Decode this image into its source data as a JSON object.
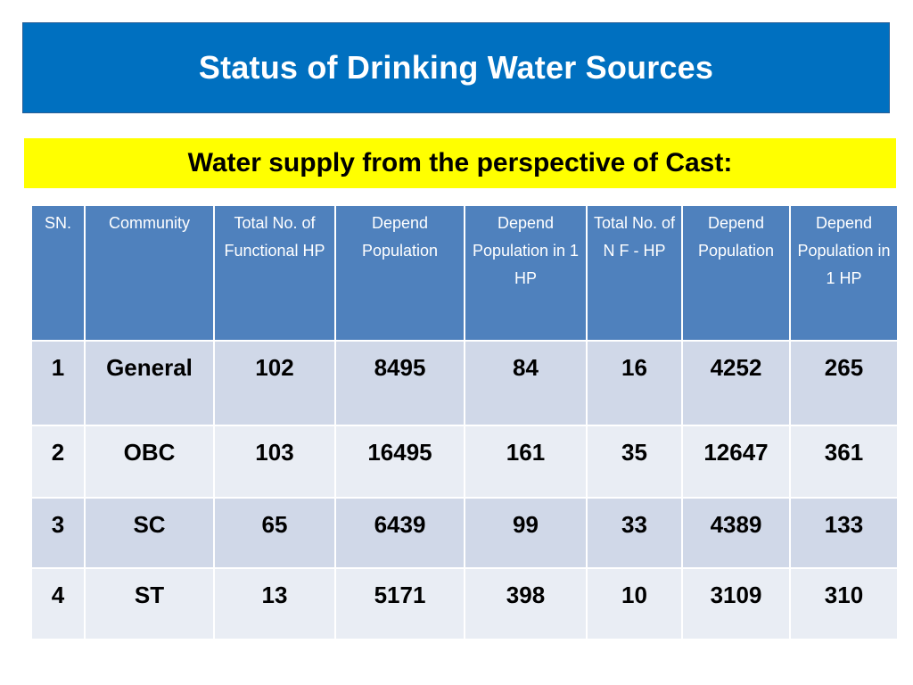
{
  "slide": {
    "title": "Status of Drinking Water Sources",
    "subtitle": "Water supply from the perspective of Cast:"
  },
  "table": {
    "headers": [
      "SN.",
      "Community",
      "Total No. of Functional HP",
      "Depend Population",
      "Depend Population in 1 HP",
      "Total No. of N F - HP",
      "Depend Population",
      "Depend Population in 1 HP"
    ],
    "rows": [
      [
        "1",
        "General",
        "102",
        "8495",
        "84",
        "16",
        "4252",
        "265"
      ],
      [
        "2",
        "OBC",
        "103",
        "16495",
        "161",
        "35",
        "12647",
        "361"
      ],
      [
        "3",
        "SC",
        "65",
        "6439",
        "99",
        "33",
        "4389",
        "133"
      ],
      [
        "4",
        "ST",
        "13",
        "5171",
        "398",
        "10",
        "3109",
        "310"
      ]
    ]
  },
  "colors": {
    "title_bar": "#0070c0",
    "subtitle_bar": "#ffff00",
    "table_header": "#4f81bd",
    "row_band_dark": "#d0d8e8",
    "row_band_light": "#e9edf4"
  }
}
